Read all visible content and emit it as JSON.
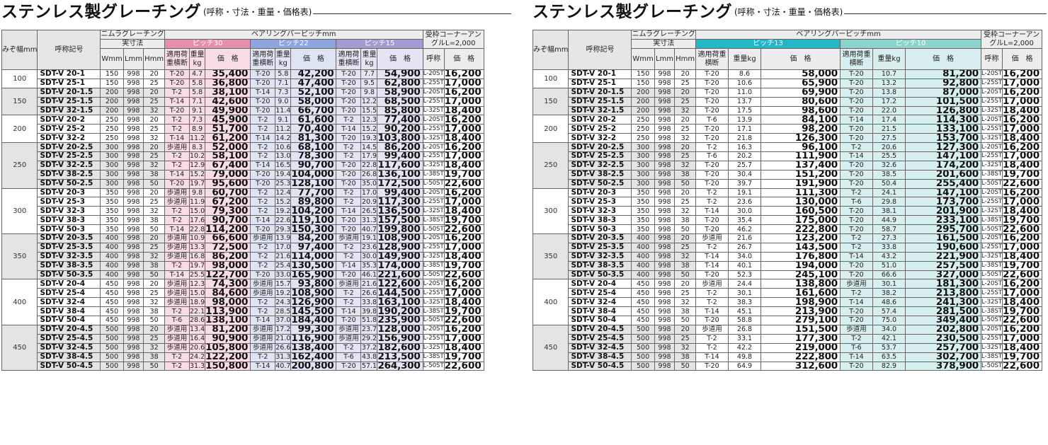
{
  "title_main": "ステンレス製グレーチング",
  "title_sub": "(呼称・寸法・重量・価格表)",
  "headers": {
    "width": "みぞ幅mm",
    "code": "呼称記号",
    "nimura": "ニムラグレーチング",
    "dims": "実寸法",
    "wmm": "Wmm",
    "lmm": "Lmm",
    "hmm": "Hmm",
    "bearing": "ベアリングバーピッチmm",
    "load": "適用荷重横断",
    "weight": "重量kg",
    "price": "価　格",
    "corner": "受枠コーナーアングルL=2,000",
    "corner_name": "呼称",
    "corner_price": "価　格"
  },
  "left_pitches": [
    "ピッチ30",
    "ピッチ22",
    "ピッチ15"
  ],
  "right_pitches": [
    "ピッチ13",
    "ピッチ10"
  ],
  "colors": {
    "pink": "#e48fb0",
    "blue": "#8ea6dd",
    "lavender": "#a79ad0",
    "cyan": "#22b6c6",
    "teal": "#8ed2cc"
  },
  "widths": [
    "100",
    "150",
    "200",
    "250",
    "300",
    "350",
    "400",
    "450"
  ],
  "rows": [
    {
      "code": "SDT-V 20-1",
      "W": "150",
      "L": "998",
      "H": "20",
      "c": "L-20ST",
      "cp": "16,200"
    },
    {
      "code": "SDT-V 25-1",
      "W": "150",
      "L": "998",
      "H": "25",
      "c": "L-25ST",
      "cp": "17,000"
    },
    {
      "code": "SDT-V 20-1.5",
      "W": "200",
      "L": "998",
      "H": "20",
      "c": "L-20ST",
      "cp": "16,200"
    },
    {
      "code": "SDT-V 25-1.5",
      "W": "200",
      "L": "998",
      "H": "25",
      "c": "L-25ST",
      "cp": "17,000"
    },
    {
      "code": "SDT-V 32-1.5",
      "W": "200",
      "L": "998",
      "H": "32",
      "c": "L-32ST",
      "cp": "18,400"
    },
    {
      "code": "SDT-V 20-2",
      "W": "250",
      "L": "998",
      "H": "20",
      "c": "L-20ST",
      "cp": "16,200"
    },
    {
      "code": "SDT-V 25-2",
      "W": "250",
      "L": "998",
      "H": "25",
      "c": "L-25ST",
      "cp": "17,000"
    },
    {
      "code": "SDT-V 32-2",
      "W": "250",
      "L": "998",
      "H": "32",
      "c": "L-32ST",
      "cp": "18,400"
    },
    {
      "code": "SDT-V 20-2.5",
      "W": "300",
      "L": "998",
      "H": "20",
      "c": "L-20ST",
      "cp": "16,200"
    },
    {
      "code": "SDT-V 25-2.5",
      "W": "300",
      "L": "998",
      "H": "25",
      "c": "L-25ST",
      "cp": "17,000"
    },
    {
      "code": "SDT-V 32-2.5",
      "W": "300",
      "L": "998",
      "H": "32",
      "c": "L-32ST",
      "cp": "18,400"
    },
    {
      "code": "SDT-V 38-2.5",
      "W": "300",
      "L": "998",
      "H": "38",
      "c": "L-38ST",
      "cp": "19,700"
    },
    {
      "code": "SDT-V 50-2.5",
      "W": "300",
      "L": "998",
      "H": "50",
      "c": "L-50ST",
      "cp": "22,600"
    },
    {
      "code": "SDT-V 20-3",
      "W": "350",
      "L": "998",
      "H": "20",
      "c": "L-20ST",
      "cp": "16,200"
    },
    {
      "code": "SDT-V 25-3",
      "W": "350",
      "L": "998",
      "H": "25",
      "c": "L-25ST",
      "cp": "17,000"
    },
    {
      "code": "SDT-V 32-3",
      "W": "350",
      "L": "998",
      "H": "32",
      "c": "L-32ST",
      "cp": "18,400"
    },
    {
      "code": "SDT-V 38-3",
      "W": "350",
      "L": "998",
      "H": "38",
      "c": "L-38ST",
      "cp": "19,700"
    },
    {
      "code": "SDT-V 50-3",
      "W": "350",
      "L": "998",
      "H": "50",
      "c": "L-50ST",
      "cp": "22,600"
    },
    {
      "code": "SDT-V 20-3.5",
      "W": "400",
      "L": "998",
      "H": "20",
      "c": "L-20ST",
      "cp": "16,200"
    },
    {
      "code": "SDT-V 25-3.5",
      "W": "400",
      "L": "998",
      "H": "25",
      "c": "L-25ST",
      "cp": "17,000"
    },
    {
      "code": "SDT-V 32-3.5",
      "W": "400",
      "L": "998",
      "H": "32",
      "c": "L-32ST",
      "cp": "18,400"
    },
    {
      "code": "SDT-V 38-3.5",
      "W": "400",
      "L": "998",
      "H": "38",
      "c": "L-38ST",
      "cp": "19,700"
    },
    {
      "code": "SDT-V 50-3.5",
      "W": "400",
      "L": "998",
      "H": "50",
      "c": "L-50ST",
      "cp": "22,600"
    },
    {
      "code": "SDT-V 20-4",
      "W": "450",
      "L": "998",
      "H": "20",
      "c": "L-20ST",
      "cp": "16,200"
    },
    {
      "code": "SDT-V 25-4",
      "W": "450",
      "L": "998",
      "H": "25",
      "c": "L-25ST",
      "cp": "17,000"
    },
    {
      "code": "SDT-V 32-4",
      "W": "450",
      "L": "998",
      "H": "32",
      "c": "L-32ST",
      "cp": "18,400"
    },
    {
      "code": "SDT-V 38-4",
      "W": "450",
      "L": "998",
      "H": "38",
      "c": "L-38ST",
      "cp": "19,700"
    },
    {
      "code": "SDT-V 50-4",
      "W": "450",
      "L": "998",
      "H": "50",
      "c": "L-50ST",
      "cp": "22,600"
    },
    {
      "code": "SDT-V 20-4.5",
      "W": "500",
      "L": "998",
      "H": "20",
      "c": "L-20ST",
      "cp": "16,200"
    },
    {
      "code": "SDT-V 25-4.5",
      "W": "500",
      "L": "998",
      "H": "25",
      "c": "L-25ST",
      "cp": "17,000"
    },
    {
      "code": "SDT-V 32-4.5",
      "W": "500",
      "L": "998",
      "H": "32",
      "c": "L-32ST",
      "cp": "18,400"
    },
    {
      "code": "SDT-V 38-4.5",
      "W": "500",
      "L": "998",
      "H": "38",
      "c": "L-38ST",
      "cp": "19,700"
    },
    {
      "code": "SDT-V 50-4.5",
      "W": "500",
      "L": "998",
      "H": "50",
      "c": "L-50ST",
      "cp": "22,600"
    }
  ],
  "left_pitch_data": [
    [
      [
        "T-20",
        "4.7",
        "35,400"
      ],
      [
        "T-20",
        "5.8",
        "42,200"
      ],
      [
        "T-20",
        "7.7",
        "54,900"
      ]
    ],
    [
      [
        "T-20",
        "5.8",
        "36,800"
      ],
      [
        "T-20",
        "7.1",
        "47,400"
      ],
      [
        "T-20",
        "9.5",
        "62,800"
      ]
    ],
    [
      [
        "T-2",
        "5.8",
        "38,100"
      ],
      [
        "T-14",
        "7.3",
        "52,100"
      ],
      [
        "T-20",
        "9.8",
        "58,900"
      ]
    ],
    [
      [
        "T-14",
        "7.1",
        "42,600"
      ],
      [
        "T-20",
        "9.0",
        "58,000"
      ],
      [
        "T-20",
        "12.2",
        "68,500"
      ]
    ],
    [
      [
        "T-20",
        "9.1",
        "49,900"
      ],
      [
        "T-20",
        "11.4",
        "66,700"
      ],
      [
        "T-20",
        "15.5",
        "85,800"
      ]
    ],
    [
      [
        "T-2",
        "7.3",
        "45,900"
      ],
      [
        "T-2",
        "9.1",
        "61,600"
      ],
      [
        "T-2",
        "12.3",
        "77,400"
      ]
    ],
    [
      [
        "T-2",
        "8.9",
        "51,700"
      ],
      [
        "T-2",
        "11.2",
        "70,400"
      ],
      [
        "T-14",
        "15.2",
        "90,200"
      ]
    ],
    [
      [
        "T-14",
        "11.2",
        "61,200"
      ],
      [
        "T-14",
        "14.2",
        "81,300"
      ],
      [
        "T-20",
        "19.3",
        "103,800"
      ]
    ],
    [
      [
        "歩道用",
        "8.3",
        "52,000"
      ],
      [
        "T-2",
        "10.6",
        "68,100"
      ],
      [
        "T-2",
        "14.5",
        "86,200"
      ]
    ],
    [
      [
        "T-2",
        "10.2",
        "58,100"
      ],
      [
        "T-2",
        "13.0",
        "78,300"
      ],
      [
        "T-2",
        "17.9",
        "99,400"
      ]
    ],
    [
      [
        "T-2",
        "12.9",
        "67,400"
      ],
      [
        "T-14",
        "16.5",
        "90,700"
      ],
      [
        "T-20",
        "22.8",
        "117,600"
      ]
    ],
    [
      [
        "T-14",
        "15.2",
        "79,000"
      ],
      [
        "T-20",
        "19.4",
        "104,000"
      ],
      [
        "T-20",
        "26.8",
        "136,100"
      ]
    ],
    [
      [
        "T-20",
        "19.7",
        "95,600"
      ],
      [
        "T-20",
        "25.3",
        "128,100"
      ],
      [
        "T-20",
        "35.0",
        "172,500"
      ]
    ],
    [
      [
        "歩道用",
        "9.8",
        "60,700"
      ],
      [
        "T-2",
        "12.4",
        "77,700"
      ],
      [
        "T-2",
        "17.0",
        "99,400"
      ]
    ],
    [
      [
        "歩道用",
        "11.9",
        "67,200"
      ],
      [
        "T-2",
        "15.2",
        "89,800"
      ],
      [
        "T-2",
        "20.9",
        "117,300"
      ]
    ],
    [
      [
        "T-2",
        "15.0",
        "79,300"
      ],
      [
        "T-2",
        "19.2",
        "104,200"
      ],
      [
        "T-14",
        "26.5",
        "136,500"
      ]
    ],
    [
      [
        "T-2",
        "17.6",
        "90,700"
      ],
      [
        "T-14",
        "22.6",
        "119,100"
      ],
      [
        "T-20",
        "31.3",
        "157,500"
      ]
    ],
    [
      [
        "T-14",
        "22.8",
        "114,200"
      ],
      [
        "T-20",
        "29.3",
        "150,300"
      ],
      [
        "T-20",
        "40.7",
        "199,800"
      ]
    ],
    [
      [
        "歩道用",
        "10.9",
        "66,600"
      ],
      [
        "歩道用",
        "13.9",
        "84,200"
      ],
      [
        "歩道用",
        "19.1",
        "108,900"
      ]
    ],
    [
      [
        "歩道用",
        "13.3",
        "72,500"
      ],
      [
        "T-2",
        "17.0",
        "97,400"
      ],
      [
        "T-2",
        "23.6",
        "128,900"
      ]
    ],
    [
      [
        "歩道用",
        "16.8",
        "86,200"
      ],
      [
        "T-2",
        "21.6",
        "114,000"
      ],
      [
        "T-2",
        "30.0",
        "149,900"
      ]
    ],
    [
      [
        "T-2",
        "19.7",
        "98,000"
      ],
      [
        "T-2",
        "25.4",
        "130,500"
      ],
      [
        "T-14",
        "35.3",
        "174,000"
      ]
    ],
    [
      [
        "T-14",
        "25.5",
        "122,700"
      ],
      [
        "T-20",
        "33.0",
        "165,900"
      ],
      [
        "T-20",
        "46.1",
        "221,600"
      ]
    ],
    [
      [
        "歩道用",
        "12.3",
        "74,300"
      ],
      [
        "歩道用",
        "15.7",
        "93,800"
      ],
      [
        "歩道用",
        "21.6",
        "122,600"
      ]
    ],
    [
      [
        "歩道用",
        "15.0",
        "84,600"
      ],
      [
        "歩道用",
        "19.2",
        "108,900"
      ],
      [
        "T-2",
        "26.6",
        "144,500"
      ]
    ],
    [
      [
        "歩道用",
        "18.9",
        "98,000"
      ],
      [
        "T-2",
        "24.3",
        "126,900"
      ],
      [
        "T-2",
        "33.8",
        "163,100"
      ]
    ],
    [
      [
        "T-2",
        "22.1",
        "113,900"
      ],
      [
        "T-2",
        "28.5",
        "145,500"
      ],
      [
        "T-14",
        "39.8",
        "190,200"
      ]
    ],
    [
      [
        "T-6",
        "28.6",
        "138,100"
      ],
      [
        "T-14",
        "37.0",
        "184,400"
      ],
      [
        "T-20",
        "51.8",
        "235,900"
      ]
    ],
    [
      [
        "歩道用",
        "13.4",
        "81,200"
      ],
      [
        "歩道用",
        "17.2",
        "99,300"
      ],
      [
        "歩道用",
        "23.7",
        "128,000"
      ]
    ],
    [
      [
        "歩道用",
        "16.4",
        "90,900"
      ],
      [
        "歩道用",
        "21.0",
        "116,900"
      ],
      [
        "歩道用",
        "29.2",
        "156,900"
      ]
    ],
    [
      [
        "歩道用",
        "20.6",
        "105,800"
      ],
      [
        "歩道用",
        "26.6",
        "138,400"
      ],
      [
        "T-2",
        "37.2",
        "182,600"
      ]
    ],
    [
      [
        "T-2",
        "24.2",
        "122,200"
      ],
      [
        "T-2",
        "31.3",
        "162,400"
      ],
      [
        "T-6",
        "43.8",
        "213,500"
      ]
    ],
    [
      [
        "T-2",
        "31.3",
        "150,800"
      ],
      [
        "T-14",
        "40.7",
        "200,800"
      ],
      [
        "T-20",
        "57.1",
        "264,300"
      ]
    ]
  ],
  "right_pitch_data": [
    [
      [
        "T-20",
        "8.6",
        "58,000"
      ],
      [
        "T-20",
        "10.7",
        "81,200"
      ]
    ],
    [
      [
        "T-20",
        "10.6",
        "65,900"
      ],
      [
        "T-20",
        "13.2",
        "92,800"
      ]
    ],
    [
      [
        "T-20",
        "11.0",
        "69,900"
      ],
      [
        "T-20",
        "13.8",
        "87,000"
      ]
    ],
    [
      [
        "T-20",
        "13.7",
        "80,600"
      ],
      [
        "T-20",
        "17.2",
        "101,500"
      ]
    ],
    [
      [
        "T-20",
        "17.5",
        "98,600"
      ],
      [
        "T-20",
        "22.0",
        "126,800"
      ]
    ],
    [
      [
        "T-6",
        "13.9",
        "84,100"
      ],
      [
        "T-14",
        "17.4",
        "114,300"
      ]
    ],
    [
      [
        "T-20",
        "17.1",
        "98,200"
      ],
      [
        "T-20",
        "21.5",
        "133,100"
      ]
    ],
    [
      [
        "T-20",
        "21.8",
        "126,300"
      ],
      [
        "T-20",
        "27.5",
        "153,700"
      ]
    ],
    [
      [
        "T-2",
        "16.3",
        "96,100"
      ],
      [
        "T-2",
        "20.6",
        "127,300"
      ]
    ],
    [
      [
        "T-6",
        "20.2",
        "111,900"
      ],
      [
        "T-14",
        "25.5",
        "147,100"
      ]
    ],
    [
      [
        "T-20",
        "25.7",
        "137,400"
      ],
      [
        "T-20",
        "32.6",
        "174,200"
      ]
    ],
    [
      [
        "T-20",
        "30.4",
        "151,200"
      ],
      [
        "T-20",
        "38.5",
        "201,600"
      ]
    ],
    [
      [
        "T-20",
        "39.7",
        "191,900"
      ],
      [
        "T-20",
        "50.4",
        "255,400"
      ]
    ],
    [
      [
        "T-2",
        "19.1",
        "111,300"
      ],
      [
        "T-2",
        "24.1",
        "147,100"
      ]
    ],
    [
      [
        "T-2",
        "23.6",
        "130,000"
      ],
      [
        "T-6",
        "29.8",
        "173,700"
      ]
    ],
    [
      [
        "T-14",
        "30.0",
        "160,500"
      ],
      [
        "T-20",
        "38.1",
        "201,900"
      ]
    ],
    [
      [
        "T-20",
        "35.4",
        "175,000"
      ],
      [
        "T-20",
        "44.9",
        "233,100"
      ]
    ],
    [
      [
        "T-20",
        "46.2",
        "222,800"
      ],
      [
        "T-20",
        "58.7",
        "295,700"
      ]
    ],
    [
      [
        "歩道用",
        "21.6",
        "123,200"
      ],
      [
        "T-2",
        "27.3",
        "161,500"
      ]
    ],
    [
      [
        "T-2",
        "26.7",
        "143,500"
      ],
      [
        "T-2",
        "33.8",
        "190,600"
      ]
    ],
    [
      [
        "T-14",
        "34.0",
        "176,800"
      ],
      [
        "T-14",
        "43.2",
        "221,900"
      ]
    ],
    [
      [
        "T-14",
        "40.1",
        "194,000"
      ],
      [
        "T-20",
        "51.0",
        "257,500"
      ]
    ],
    [
      [
        "T-20",
        "52.3",
        "245,100"
      ],
      [
        "T-20",
        "66.6",
        "327,000"
      ]
    ],
    [
      [
        "歩道用",
        "24.4",
        "138,800"
      ],
      [
        "歩道用",
        "30.1",
        "181,300"
      ]
    ],
    [
      [
        "T-2",
        "30.1",
        "161,600"
      ],
      [
        "T-2",
        "38.2",
        "213,800"
      ]
    ],
    [
      [
        "T-2",
        "38.3",
        "198,900"
      ],
      [
        "T-14",
        "48.6",
        "241,300"
      ]
    ],
    [
      [
        "T-14",
        "45.1",
        "213,900"
      ],
      [
        "T-20",
        "57.4",
        "281,500"
      ]
    ],
    [
      [
        "T-20",
        "58.8",
        "279,100"
      ],
      [
        "T-20",
        "75.0",
        "349,400"
      ]
    ],
    [
      [
        "歩道用",
        "26.8",
        "151,500"
      ],
      [
        "歩道用",
        "34.0",
        "202,800"
      ]
    ],
    [
      [
        "T-2",
        "33.1",
        "177,300"
      ],
      [
        "T-2",
        "42.1",
        "230,500"
      ]
    ],
    [
      [
        "T-2",
        "42.2",
        "219,000"
      ],
      [
        "T-6",
        "53.7",
        "257,700"
      ]
    ],
    [
      [
        "T-14",
        "49.8",
        "222,800"
      ],
      [
        "T-14",
        "63.5",
        "302,700"
      ]
    ],
    [
      [
        "T-20",
        "64.9",
        "312,600"
      ],
      [
        "T-20",
        "82.9",
        "378,900"
      ]
    ]
  ]
}
